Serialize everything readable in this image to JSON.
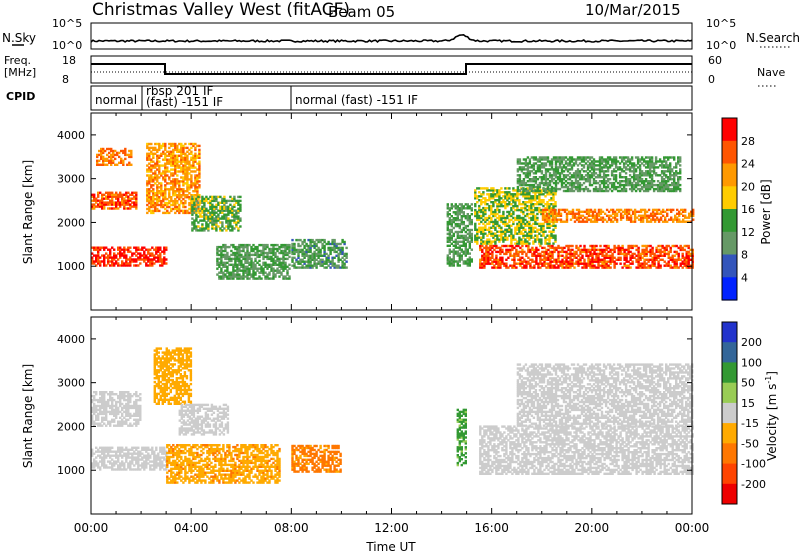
{
  "header": {
    "title": "Christmas Valley West (fitACF)",
    "beam": "Beam 05",
    "date": "10/Mar/2015"
  },
  "strips": {
    "nsky_label": "N.Sky",
    "nsearch_label": "N.Search",
    "noise_ticks": [
      "10^5",
      "10^0"
    ],
    "freq_label": "Freq.",
    "freq_unit": "[MHz]",
    "freq_ticks": [
      "18",
      "8"
    ],
    "nave_label": "Nave",
    "nave_ticks": [
      "60",
      "0"
    ],
    "cpid_label": "CPID",
    "cpid_segments": [
      {
        "label_line1": "",
        "label_line2": "normal"
      },
      {
        "label_line1": "rbsp 201 IF",
        "label_line2": "(fast) -151 IF"
      },
      {
        "label_line1": "",
        "label_line2": "normal (fast) -151 IF"
      }
    ]
  },
  "chart_data": [
    {
      "type": "heatmap",
      "panel": "power",
      "ylabel": "Slant Range [km]",
      "ylim": [
        0,
        4500
      ],
      "yticks": [
        "1000",
        "2000",
        "3000",
        "4000"
      ],
      "xlim": [
        "00:00",
        "24:00"
      ],
      "colorbar_label": "Power [dB]",
      "colorbar_ticks": [
        "28",
        "24",
        "20",
        "16",
        "12",
        "8",
        "4"
      ],
      "colorbar_colors": [
        "#ff0000",
        "#ff5500",
        "#ff9900",
        "#ffcc00",
        "#339933",
        "#669966",
        "#3355bb",
        "#0022ff"
      ],
      "echo_regions": [
        {
          "t_start": 0.0,
          "t_end": 3.0,
          "r_low": 1000,
          "r_high": 1450,
          "power_db": 26
        },
        {
          "t_start": 0.0,
          "t_end": 1.8,
          "r_low": 2300,
          "r_high": 2700,
          "power_db": 24
        },
        {
          "t_start": 0.2,
          "t_end": 1.6,
          "r_low": 3300,
          "r_high": 3700,
          "power_db": 22
        },
        {
          "t_start": 2.2,
          "t_end": 4.3,
          "r_low": 2200,
          "r_high": 3800,
          "power_db": 20
        },
        {
          "t_start": 4.0,
          "t_end": 6.0,
          "r_low": 1800,
          "r_high": 2600,
          "power_db": 12
        },
        {
          "t_start": 5.0,
          "t_end": 7.9,
          "r_low": 700,
          "r_high": 1500,
          "power_db": 10
        },
        {
          "t_start": 8.0,
          "t_end": 10.2,
          "r_low": 950,
          "r_high": 1600,
          "power_db": 9
        },
        {
          "t_start": 14.2,
          "t_end": 15.2,
          "r_low": 1000,
          "r_high": 2400,
          "power_db": 10
        },
        {
          "t_start": 15.5,
          "t_end": 24.0,
          "r_low": 950,
          "r_high": 1450,
          "power_db": 25
        },
        {
          "t_start": 15.3,
          "t_end": 18.5,
          "r_low": 1500,
          "r_high": 2800,
          "power_db": 14
        },
        {
          "t_start": 18.0,
          "t_end": 24.0,
          "r_low": 2000,
          "r_high": 2300,
          "power_db": 22
        },
        {
          "t_start": 17.0,
          "t_end": 23.5,
          "r_low": 2700,
          "r_high": 3500,
          "power_db": 10
        }
      ]
    },
    {
      "type": "heatmap",
      "panel": "velocity",
      "ylabel": "Slant Range [km]",
      "ylim": [
        0,
        4500
      ],
      "yticks": [
        "1000",
        "2000",
        "3000",
        "4000"
      ],
      "xlabel": "Time UT",
      "xticks": [
        "00:00",
        "04:00",
        "08:00",
        "12:00",
        "16:00",
        "20:00",
        "00:00"
      ],
      "colorbar_label": "Velocity [m s",
      "colorbar_unit_sup": "-1",
      "colorbar_ticks": [
        "200",
        "100",
        "50",
        "15",
        "-15",
        "-50",
        "-100",
        "-200"
      ],
      "colorbar_colors": [
        "#2233cc",
        "#336699",
        "#339933",
        "#99cc55",
        "#cccccc",
        "#ffaa00",
        "#ff7700",
        "#ff4400",
        "#ee0000"
      ],
      "echo_regions": [
        {
          "t_start": 0.0,
          "t_end": 3.0,
          "r_low": 1000,
          "r_high": 1500,
          "velocity": 0
        },
        {
          "t_start": 0.0,
          "t_end": 2.0,
          "r_low": 2000,
          "r_high": 2800,
          "velocity": 0
        },
        {
          "t_start": 2.5,
          "t_end": 4.0,
          "r_low": 2500,
          "r_high": 3800,
          "velocity": -30
        },
        {
          "t_start": 3.5,
          "t_end": 5.5,
          "r_low": 1800,
          "r_high": 2500,
          "velocity": 0
        },
        {
          "t_start": 3.0,
          "t_end": 7.5,
          "r_low": 700,
          "r_high": 1600,
          "velocity": -40
        },
        {
          "t_start": 8.0,
          "t_end": 10.0,
          "r_low": 950,
          "r_high": 1550,
          "velocity": -60
        },
        {
          "t_start": 14.6,
          "t_end": 15.0,
          "r_low": 1100,
          "r_high": 2400,
          "velocity": 40
        },
        {
          "t_start": 15.5,
          "t_end": 24.0,
          "r_low": 900,
          "r_high": 2000,
          "velocity": 0
        },
        {
          "t_start": 17.0,
          "t_end": 24.0,
          "r_low": 2000,
          "r_high": 3400,
          "velocity": 0
        }
      ]
    }
  ]
}
